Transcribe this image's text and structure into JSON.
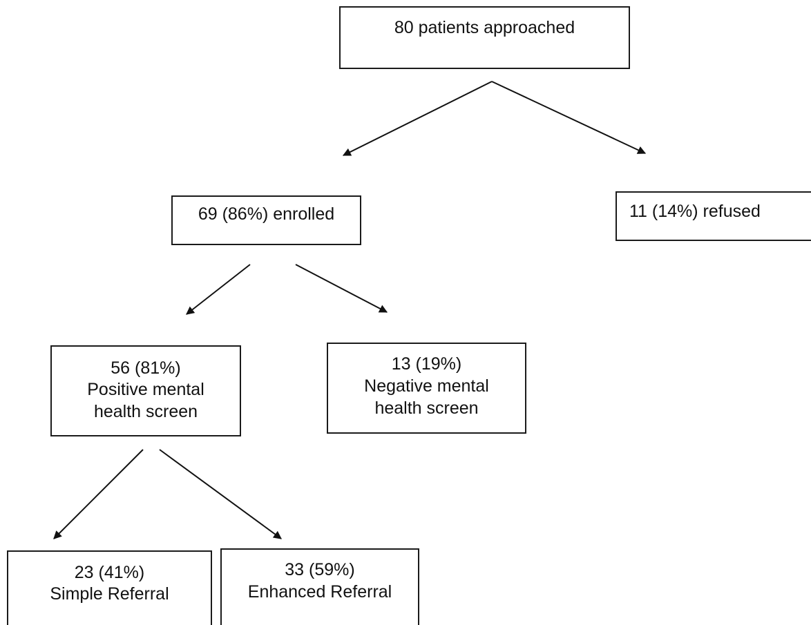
{
  "nodes": {
    "approached": {
      "lines": [
        "80 patients approached"
      ]
    },
    "enrolled": {
      "lines": [
        "69 (86%) enrolled"
      ]
    },
    "refused": {
      "lines": [
        "11 (14%) refused"
      ]
    },
    "positive": {
      "lines": [
        "56 (81%)",
        "Positive mental",
        "health screen"
      ]
    },
    "negative": {
      "lines": [
        "13 (19%)",
        "Negative mental",
        "health screen"
      ]
    },
    "simple": {
      "lines": [
        "23 (41%)",
        "Simple Referral"
      ]
    },
    "enhanced": {
      "lines": [
        "33 (59%)",
        "Enhanced Referral"
      ]
    }
  },
  "edges": [
    {
      "from": "approached",
      "to": "enrolled"
    },
    {
      "from": "approached",
      "to": "refused"
    },
    {
      "from": "enrolled",
      "to": "positive"
    },
    {
      "from": "enrolled",
      "to": "negative"
    },
    {
      "from": "positive",
      "to": "simple"
    },
    {
      "from": "positive",
      "to": "enhanced"
    }
  ]
}
